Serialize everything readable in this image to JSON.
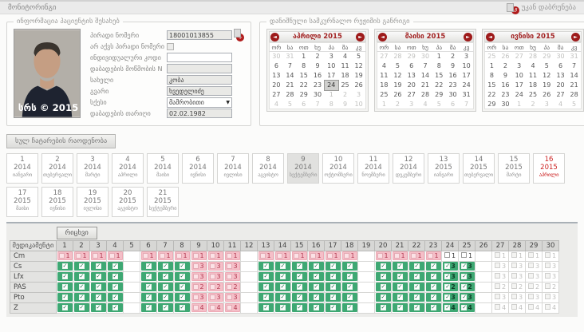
{
  "topbar": {
    "title": "მონიტორინგი",
    "back_label": "უკან დაბრუნება"
  },
  "icons": {
    "prev": "◄",
    "next": "►",
    "redo": "↺",
    "plus": "+",
    "select_arrow": "▼"
  },
  "patient": {
    "legend": "ინფორმაცია პაციენტის შესახებ",
    "photo_watermark": "სრს © 2015",
    "fields": [
      {
        "label": "პირადი ნომერი",
        "value": "18001013855"
      },
      {
        "label": "არ აქვს პირადი ნომერი",
        "checked": false
      },
      {
        "label": "ინდივიდუალური კოდი",
        "value": ""
      },
      {
        "label": "დაბადების მოწმობის N",
        "value": ""
      },
      {
        "label": "სახელი",
        "value": "კობა"
      },
      {
        "label": "გვარი",
        "value": "ხვედელიძე"
      },
      {
        "label": "სქესი",
        "value": "მამრობითი"
      },
      {
        "label": "დაბადების თარიღი",
        "value": "02.02.1982"
      }
    ]
  },
  "schedule": {
    "legend": "დანიშნული სამკურნალო რეჟიმის განრიგი",
    "day_headers": [
      "ორ",
      "სა",
      "ოთ",
      "ხუ",
      "პა",
      "შა",
      "კვ"
    ],
    "calendars": [
      {
        "title": "აპრილი 2015",
        "weeks": [
          [
            "30*",
            "31*",
            "1",
            "2",
            "3",
            "4",
            "5"
          ],
          [
            "6",
            "7",
            "8",
            "9",
            "10",
            "11",
            "12"
          ],
          [
            "13",
            "14",
            "15",
            "16",
            "17",
            "18",
            "19"
          ],
          [
            "20",
            "21",
            "22",
            "23",
            "24!",
            "25",
            "26"
          ],
          [
            "27",
            "28",
            "29",
            "30",
            "1*",
            "2*",
            "3*"
          ],
          [
            "4*",
            "5*",
            "6*",
            "7*",
            "8*",
            "9*",
            "10*"
          ]
        ]
      },
      {
        "title": "მაისი 2015",
        "weeks": [
          [
            "27*",
            "28*",
            "29*",
            "30*",
            "1",
            "2",
            "3"
          ],
          [
            "4",
            "5",
            "6",
            "7",
            "8",
            "9",
            "10"
          ],
          [
            "11",
            "12",
            "13",
            "14",
            "15",
            "16",
            "17"
          ],
          [
            "18",
            "19",
            "20",
            "21",
            "22",
            "23",
            "24"
          ],
          [
            "25",
            "26",
            "27",
            "28",
            "29",
            "30",
            "31"
          ],
          [
            "1*",
            "2*",
            "3*",
            "4*",
            "5*",
            "6*",
            "7*"
          ]
        ]
      },
      {
        "title": "ივნისი 2015",
        "weeks": [
          [
            "25*",
            "26*",
            "27*",
            "28*",
            "29*",
            "30*",
            "31*"
          ],
          [
            "1",
            "2",
            "3",
            "4",
            "5",
            "6",
            "7"
          ],
          [
            "8",
            "9",
            "10",
            "11",
            "12",
            "13",
            "14"
          ],
          [
            "15",
            "16",
            "17",
            "18",
            "19",
            "20",
            "21"
          ],
          [
            "22",
            "23",
            "24",
            "25",
            "26",
            "27",
            "28"
          ],
          [
            "29",
            "30",
            "1*",
            "2*",
            "3*",
            "4*",
            "5*"
          ]
        ]
      }
    ]
  },
  "totals_button_label": "სულ ჩატარების რაოდენობა",
  "months": {
    "items": [
      {
        "num": "1",
        "year": "2014",
        "name": "იანვარი"
      },
      {
        "num": "2",
        "year": "2014",
        "name": "თებერვალი"
      },
      {
        "num": "3",
        "year": "2014",
        "name": "მარტი"
      },
      {
        "num": "4",
        "year": "2014",
        "name": "აპრილი"
      },
      {
        "num": "5",
        "year": "2014",
        "name": "მაისი"
      },
      {
        "num": "6",
        "year": "2014",
        "name": "ივნისი"
      },
      {
        "num": "7",
        "year": "2014",
        "name": "ივლისი"
      },
      {
        "num": "8",
        "year": "2014",
        "name": "აგვისტო"
      },
      {
        "num": "9",
        "year": "2014",
        "name": "სექტემბერი",
        "state": "active"
      },
      {
        "num": "10",
        "year": "2014",
        "name": "ოქტომბერი"
      },
      {
        "num": "11",
        "year": "2014",
        "name": "ნოემბერი"
      },
      {
        "num": "12",
        "year": "2014",
        "name": "დეკემბერი"
      },
      {
        "num": "13",
        "year": "2015",
        "name": "იანვარი"
      },
      {
        "num": "14",
        "year": "2015",
        "name": "თებერვალი"
      },
      {
        "num": "15",
        "year": "2015",
        "name": "მარტი"
      },
      {
        "num": "16",
        "year": "2015",
        "name": "აპრილი",
        "state": "current"
      },
      {
        "num": "17",
        "year": "2015",
        "name": "მაისი"
      },
      {
        "num": "18",
        "year": "2015",
        "name": "ივნისი"
      },
      {
        "num": "19",
        "year": "2015",
        "name": "ივლისი"
      },
      {
        "num": "20",
        "year": "2015",
        "name": "აგვისტო"
      },
      {
        "num": "21",
        "year": "2015",
        "name": "სექტემბერი"
      }
    ]
  },
  "dose_table": {
    "day_button_label": "რიცხვი",
    "med_header": "მედიკამენტი",
    "day_count": 30,
    "rows": [
      {
        "drug": "Cm",
        "cells": [
          "p1",
          "p1",
          "p1",
          "p1",
          "",
          "p1",
          "p1",
          "p1",
          "p1",
          "p1",
          "p1",
          "",
          "p1",
          "p1",
          "p1",
          "p1",
          "p1",
          "p1",
          "",
          "p1",
          "p1",
          "p1",
          "p1",
          "w1",
          "w1",
          "",
          "d1",
          "d1",
          "d1",
          "d1"
        ]
      },
      {
        "drug": "Cs",
        "cells": [
          "g",
          "g",
          "g",
          "g",
          "",
          "g",
          "g",
          "g",
          "p3",
          "p3",
          "p3",
          "",
          "g",
          "g",
          "g",
          "g",
          "g",
          "g",
          "",
          "g",
          "g",
          "g",
          "g",
          "g3",
          "g3",
          "",
          "d3",
          "d3",
          "d3",
          "d3"
        ]
      },
      {
        "drug": "Lfx",
        "cells": [
          "g",
          "g",
          "g",
          "g",
          "",
          "g",
          "g",
          "g",
          "p3",
          "p3",
          "p3",
          "",
          "g",
          "g",
          "g",
          "g",
          "g",
          "g",
          "",
          "g",
          "g",
          "g",
          "g",
          "g3",
          "g3",
          "",
          "d3",
          "d3",
          "d3",
          "d3"
        ]
      },
      {
        "drug": "PAS",
        "cells": [
          "g",
          "g",
          "g",
          "g",
          "",
          "g",
          "g",
          "g",
          "p2",
          "p2",
          "p2",
          "",
          "g",
          "g",
          "g",
          "g",
          "g",
          "g",
          "",
          "g",
          "g",
          "g",
          "g",
          "g2",
          "g2",
          "",
          "d2",
          "d2",
          "d2",
          "d2"
        ]
      },
      {
        "drug": "Pto",
        "cells": [
          "g",
          "g",
          "g",
          "g",
          "",
          "g",
          "g",
          "g",
          "p3",
          "p3",
          "p3",
          "",
          "g",
          "g",
          "g",
          "g",
          "g",
          "g",
          "",
          "g",
          "g",
          "g",
          "g",
          "g3",
          "g3",
          "",
          "d3",
          "d3",
          "d3",
          "d3"
        ]
      },
      {
        "drug": "Z",
        "cells": [
          "g",
          "g",
          "g",
          "g",
          "",
          "g",
          "g",
          "g",
          "p4",
          "p4",
          "p4",
          "",
          "g",
          "g",
          "g",
          "g",
          "g",
          "g",
          "",
          "g",
          "g",
          "g",
          "g",
          "g4",
          "g4",
          "",
          "d4",
          "d4",
          "d4",
          "d4"
        ]
      }
    ]
  }
}
